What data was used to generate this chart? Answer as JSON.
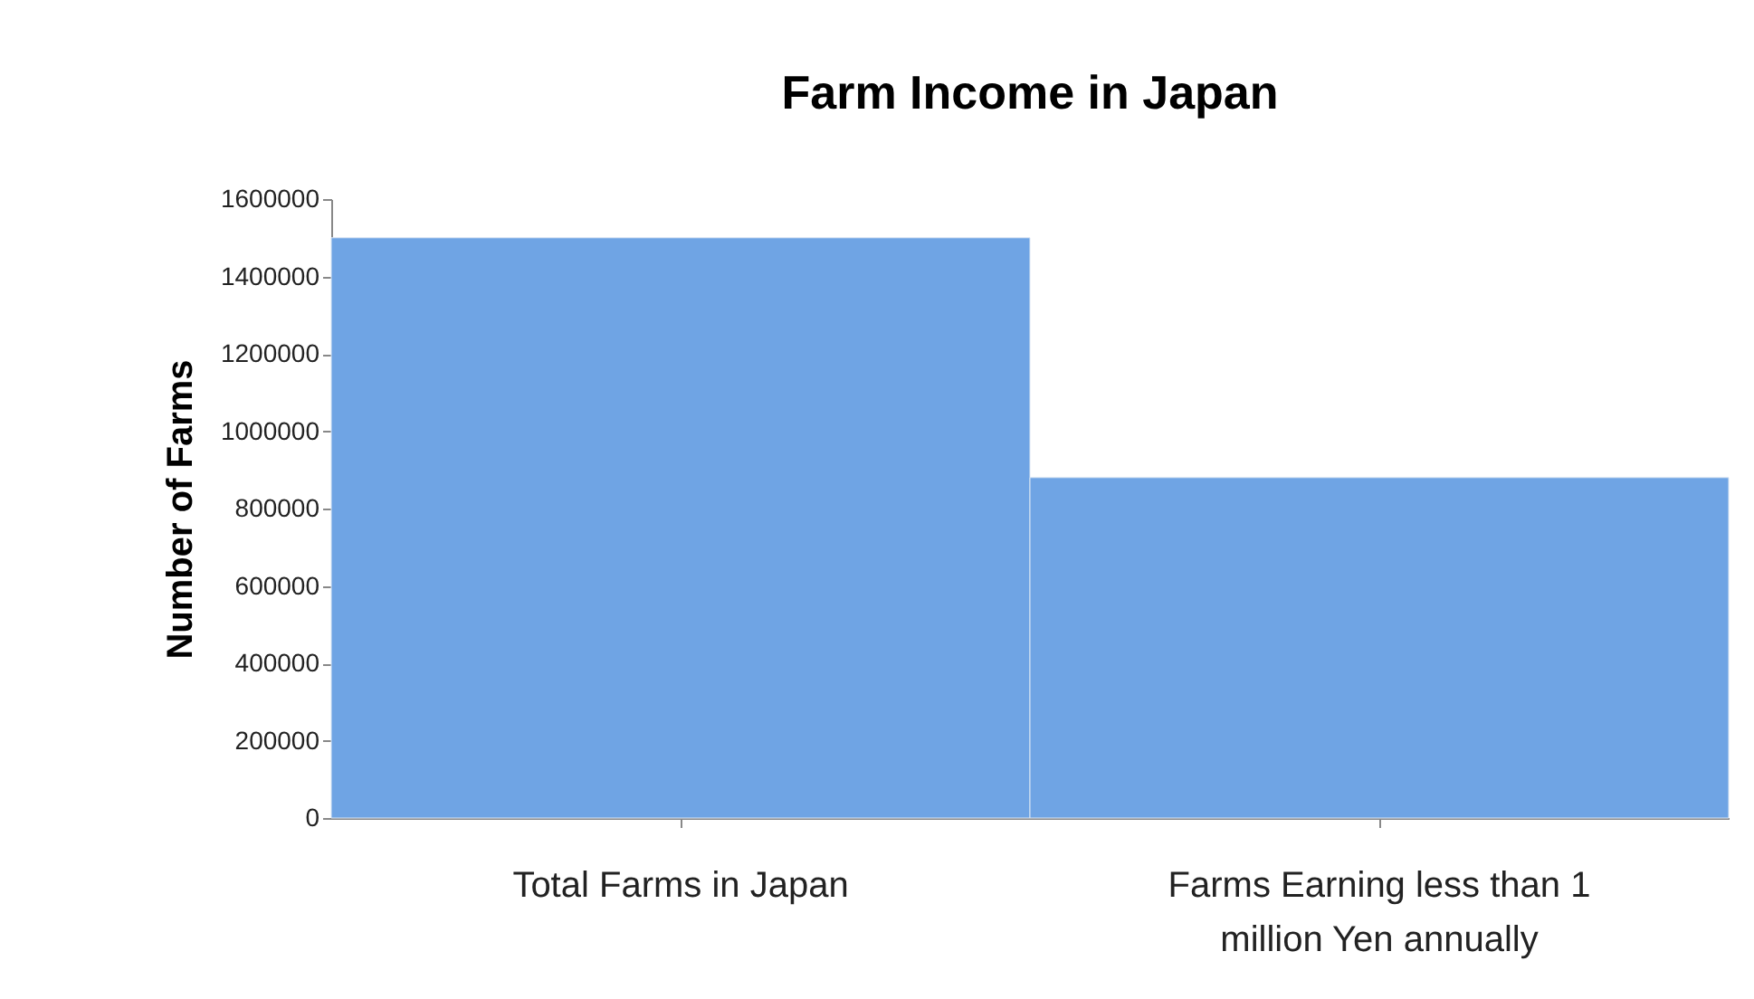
{
  "chart_data": {
    "type": "bar",
    "title": "Farm Income in Japan",
    "ylabel": "Number of Farms",
    "categories": [
      "Total Farms in Japan",
      "Farms Earning less than 1 million Yen annually"
    ],
    "values": [
      1500000,
      880000
    ],
    "color": "#6fa4e4",
    "ylim": [
      0,
      1600000
    ],
    "yticks": [
      0,
      200000,
      400000,
      600000,
      800000,
      1000000,
      1200000,
      1400000,
      1600000
    ],
    "grid": false
  }
}
